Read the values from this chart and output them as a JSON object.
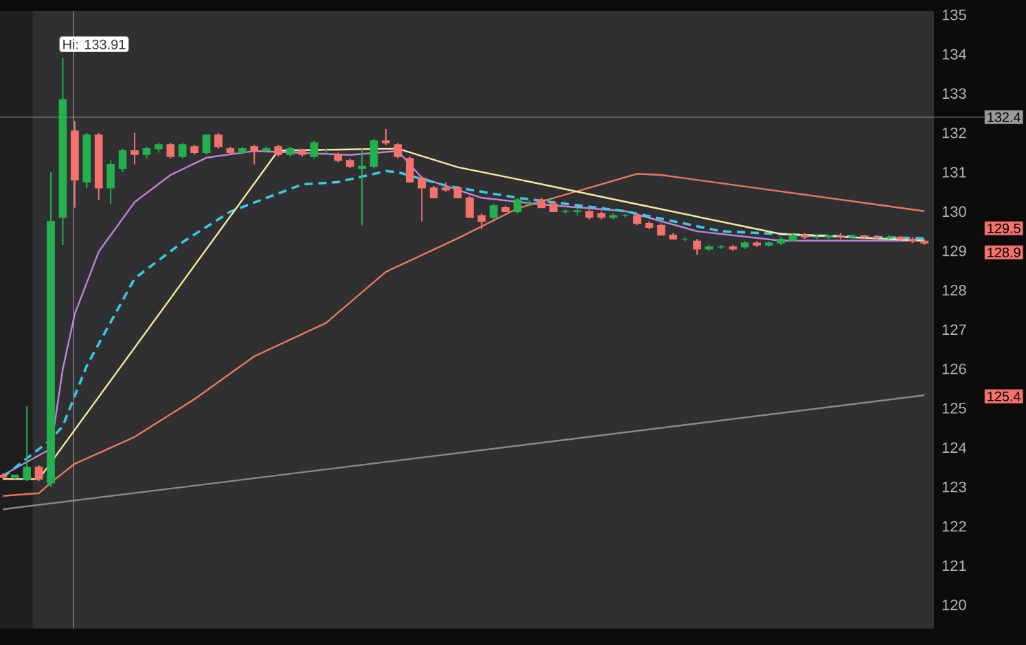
{
  "chart_data": {
    "type": "candlestick",
    "categories": [
      null,
      null,
      null,
      null,
      null,
      null,
      null,
      null,
      null,
      null,
      null,
      null,
      null,
      null,
      null,
      null,
      null,
      null,
      null,
      null,
      null,
      null,
      null,
      null,
      null,
      null,
      null,
      null,
      null,
      null,
      null,
      null,
      null,
      null,
      null,
      null,
      null,
      null,
      null,
      null,
      null,
      null,
      null,
      null,
      null,
      null,
      null,
      null,
      null,
      null,
      null,
      null,
      null,
      null,
      null,
      null,
      null,
      null,
      null,
      null,
      null,
      null,
      null,
      null,
      null,
      null,
      null,
      null,
      null,
      null,
      null,
      null,
      null,
      null,
      null,
      null,
      null,
      null
    ],
    "ohlc": [
      [
        123.3,
        123.35,
        123.2,
        123.25
      ],
      [
        123.25,
        123.3,
        123.2,
        123.3
      ],
      [
        123.2,
        125.05,
        123.15,
        123.5
      ],
      [
        123.5,
        123.55,
        123.15,
        123.2
      ],
      [
        123.1,
        131.0,
        123.0,
        129.75
      ],
      [
        129.85,
        133.91,
        129.15,
        132.85
      ],
      [
        132.05,
        132.3,
        130.1,
        130.8
      ],
      [
        130.75,
        132.0,
        130.6,
        131.95
      ],
      [
        131.95,
        132.0,
        130.3,
        130.6
      ],
      [
        130.6,
        131.3,
        130.2,
        131.2
      ],
      [
        131.1,
        131.6,
        131.0,
        131.55
      ],
      [
        131.55,
        132.0,
        131.2,
        131.45
      ],
      [
        131.45,
        131.65,
        131.35,
        131.6
      ],
      [
        131.6,
        131.75,
        131.5,
        131.7
      ],
      [
        131.7,
        131.75,
        131.35,
        131.4
      ],
      [
        131.4,
        131.75,
        131.35,
        131.7
      ],
      [
        131.65,
        131.7,
        131.45,
        131.5
      ],
      [
        131.5,
        131.95,
        131.45,
        131.95
      ],
      [
        131.95,
        132.0,
        131.6,
        131.65
      ],
      [
        131.6,
        131.65,
        131.45,
        131.5
      ],
      [
        131.5,
        131.65,
        131.45,
        131.6
      ],
      [
        131.65,
        131.7,
        131.2,
        131.55
      ],
      [
        131.55,
        131.65,
        131.5,
        131.6
      ],
      [
        131.65,
        131.7,
        131.4,
        131.45
      ],
      [
        131.45,
        131.65,
        131.4,
        131.6
      ],
      [
        131.55,
        131.6,
        131.4,
        131.45
      ],
      [
        131.4,
        131.8,
        131.35,
        131.75
      ],
      [
        131.55,
        131.6,
        131.45,
        131.55
      ],
      [
        131.45,
        131.5,
        131.25,
        131.3
      ],
      [
        131.3,
        131.35,
        131.1,
        131.15
      ],
      [
        131.1,
        131.6,
        129.65,
        131.15
      ],
      [
        131.15,
        131.85,
        131.1,
        131.8
      ],
      [
        131.8,
        132.1,
        131.7,
        131.75
      ],
      [
        131.7,
        131.75,
        131.35,
        131.4
      ],
      [
        131.35,
        131.4,
        130.75,
        130.75
      ],
      [
        130.85,
        130.9,
        129.75,
        130.6
      ],
      [
        130.6,
        130.65,
        130.35,
        130.35
      ],
      [
        130.6,
        130.75,
        130.5,
        130.55
      ],
      [
        130.6,
        130.65,
        130.35,
        130.35
      ],
      [
        130.35,
        130.4,
        129.85,
        129.85
      ],
      [
        129.9,
        129.95,
        129.55,
        129.75
      ],
      [
        129.85,
        130.2,
        129.8,
        130.15
      ],
      [
        130.1,
        130.15,
        130.0,
        130.0
      ],
      [
        130.0,
        130.35,
        129.95,
        130.3
      ],
      [
        130.2,
        130.3,
        130.15,
        130.2
      ],
      [
        130.3,
        130.35,
        130.1,
        130.1
      ],
      [
        130.2,
        130.25,
        130.0,
        130.0
      ],
      [
        130.0,
        130.05,
        129.95,
        130.0
      ],
      [
        130.0,
        130.1,
        129.9,
        130.02
      ],
      [
        130.0,
        130.05,
        129.8,
        129.85
      ],
      [
        129.95,
        130.0,
        129.8,
        129.85
      ],
      [
        129.85,
        129.95,
        129.8,
        129.9
      ],
      [
        129.9,
        129.95,
        129.85,
        129.9
      ],
      [
        129.9,
        129.95,
        129.65,
        129.7
      ],
      [
        129.7,
        129.75,
        129.55,
        129.6
      ],
      [
        129.65,
        129.7,
        129.4,
        129.4
      ],
      [
        129.4,
        129.45,
        129.3,
        129.3
      ],
      [
        129.3,
        129.35,
        129.25,
        129.3
      ],
      [
        129.25,
        129.3,
        128.9,
        129.05
      ],
      [
        129.05,
        129.15,
        129.0,
        129.1
      ],
      [
        129.1,
        129.15,
        129.05,
        129.1
      ],
      [
        129.1,
        129.15,
        129.0,
        129.05
      ],
      [
        129.1,
        129.25,
        129.05,
        129.2
      ],
      [
        129.2,
        129.25,
        129.1,
        129.15
      ],
      [
        129.15,
        129.25,
        129.1,
        129.2
      ],
      [
        129.2,
        129.35,
        129.15,
        129.3
      ],
      [
        129.27,
        129.45,
        129.25,
        129.4
      ],
      [
        129.4,
        129.45,
        129.3,
        129.35
      ],
      [
        129.35,
        129.4,
        129.3,
        129.35
      ],
      [
        129.35,
        129.4,
        129.3,
        129.38
      ],
      [
        129.38,
        129.45,
        129.3,
        129.35
      ],
      [
        129.35,
        129.4,
        129.3,
        129.37
      ],
      [
        129.37,
        129.4,
        129.3,
        129.35
      ],
      [
        129.35,
        129.4,
        129.3,
        129.33
      ],
      [
        129.33,
        129.4,
        129.3,
        129.35
      ],
      [
        129.35,
        129.38,
        129.25,
        129.3
      ],
      [
        129.3,
        129.35,
        129.2,
        129.25
      ],
      [
        129.25,
        129.3,
        129.15,
        129.2
      ]
    ],
    "colors": [
      "#f4726b",
      "#22b14c",
      "#22b14c",
      "#f4726b",
      "#22b14c",
      "#22b14c",
      "#f4726b",
      "#22b14c",
      "#f4726b",
      "#22b14c",
      "#22b14c",
      "#f4726b",
      "#22b14c",
      "#22b14c",
      "#f4726b",
      "#22b14c",
      "#f4726b",
      "#22b14c",
      "#f4726b",
      "#f4726b",
      "#22b14c",
      "#f4726b",
      "#22b14c",
      "#f4726b",
      "#22b14c",
      "#f4726b",
      "#22b14c",
      "#22b14c",
      "#f4726b",
      "#f4726b",
      "#22b14c",
      "#22b14c",
      "#f4726b",
      "#f4726b",
      "#f4726b",
      "#f4726b",
      "#f4726b",
      "#f4726b",
      "#f4726b",
      "#f4726b",
      "#f4726b",
      "#22b14c",
      "#f4726b",
      "#22b14c",
      "#22b14c",
      "#f4726b",
      "#f4726b",
      "#22b14c",
      "#22b14c",
      "#f4726b",
      "#f4726b",
      "#22b14c",
      "#22b14c",
      "#f4726b",
      "#f4726b",
      "#f4726b",
      "#f4726b",
      "#22b14c",
      "#f4726b",
      "#22b14c",
      "#22b14c",
      "#f4726b",
      "#22b14c",
      "#f4726b",
      "#22b14c",
      "#22b14c",
      "#22b14c",
      "#f4726b",
      "#22b14c",
      "#22b14c",
      "#f4726b",
      "#22b14c",
      "#f4726b",
      "#f4726b",
      "#22b14c",
      "#f4726b",
      "#f4726b",
      "#f4726b"
    ],
    "series": [
      {
        "type": "line",
        "color": "#8a8a8a",
        "line_style": "solid",
        "values": [
          122.43,
          null,
          null,
          null,
          null,
          null,
          null,
          null,
          null,
          null,
          null,
          null,
          null,
          null,
          null,
          null,
          null,
          null,
          null,
          null,
          null,
          null,
          null,
          null,
          null,
          null,
          null,
          null,
          null,
          null,
          null,
          null,
          null,
          null,
          null,
          null,
          null,
          null,
          null,
          null,
          null,
          null,
          null,
          null,
          null,
          null,
          null,
          null,
          null,
          null,
          null,
          null,
          null,
          null,
          null,
          null,
          null,
          null,
          null,
          null,
          null,
          null,
          null,
          null,
          null,
          null,
          null,
          null,
          null,
          null,
          null,
          null,
          null,
          null,
          null,
          null,
          null,
          125.33
        ]
      },
      {
        "type": "line",
        "color": "#e57a5e",
        "line_style": "solid",
        "values": [
          122.77,
          null,
          null,
          122.84,
          123.11,
          null,
          123.59,
          null,
          null,
          null,
          null,
          124.27,
          null,
          null,
          null,
          null,
          125.23,
          null,
          null,
          null,
          null,
          126.32,
          null,
          null,
          null,
          null,
          null,
          127.17,
          null,
          null,
          null,
          null,
          128.47,
          null,
          null,
          null,
          null,
          null,
          129.32,
          null,
          null,
          null,
          null,
          130.08,
          null,
          null,
          null,
          null,
          130.52,
          null,
          null,
          null,
          null,
          130.96,
          null,
          130.93,
          null,
          null,
          null,
          null,
          null,
          null,
          null,
          null,
          null,
          null,
          null,
          null,
          null,
          null,
          null,
          null,
          null,
          null,
          null,
          null,
          null,
          130.01
        ]
      },
      {
        "type": "line",
        "color": "#c383d6",
        "line_style": "solid",
        "values": [
          123.3,
          null,
          null,
          null,
          123.97,
          126.0,
          127.4,
          null,
          128.98,
          null,
          null,
          130.24,
          null,
          null,
          130.93,
          null,
          null,
          131.37,
          null,
          null,
          null,
          131.54,
          null,
          null,
          null,
          null,
          null,
          null,
          null,
          131.44,
          null,
          null,
          null,
          131.54,
          null,
          130.86,
          null,
          null,
          null,
          null,
          130.35,
          null,
          null,
          null,
          null,
          130.18,
          null,
          null,
          null,
          null,
          null,
          null,
          130.01,
          null,
          null,
          null,
          null,
          null,
          129.5,
          null,
          null,
          null,
          null,
          null,
          null,
          129.26,
          null,
          null,
          null,
          null,
          null,
          null,
          null,
          null,
          null,
          null,
          null,
          129.26
        ]
      },
      {
        "type": "line",
        "color": "#3cc8e0",
        "line_style": "dashed",
        "values": [
          123.25,
          null,
          null,
          null,
          124.2,
          124.55,
          null,
          126.08,
          null,
          null,
          null,
          128.3,
          null,
          null,
          null,
          129.22,
          null,
          null,
          null,
          130.0,
          null,
          null,
          null,
          null,
          null,
          130.69,
          null,
          null,
          130.75,
          null,
          null,
          null,
          131.03,
          131.0,
          null,
          null,
          null,
          130.66,
          null,
          null,
          null,
          null,
          null,
          130.35,
          null,
          null,
          null,
          null,
          null,
          null,
          null,
          null,
          130.01,
          null,
          null,
          null,
          null,
          null,
          null,
          null,
          129.5,
          null,
          null,
          null,
          null,
          null,
          null,
          129.4,
          null,
          null,
          null,
          null,
          null,
          null,
          null,
          null,
          null,
          129.32
        ]
      },
      {
        "type": "line",
        "color": "#f3eba0",
        "line_style": "solid",
        "values": [
          123.2,
          null,
          null,
          123.2,
          null,
          null,
          null,
          null,
          null,
          null,
          null,
          null,
          null,
          null,
          null,
          null,
          null,
          null,
          null,
          null,
          null,
          null,
          null,
          131.55,
          null,
          null,
          null,
          null,
          null,
          null,
          null,
          null,
          null,
          131.6,
          null,
          null,
          null,
          null,
          131.13,
          null,
          null,
          null,
          null,
          null,
          130.76,
          null,
          null,
          null,
          null,
          null,
          null,
          null,
          130.25,
          null,
          null,
          null,
          null,
          null,
          null,
          null,
          null,
          null,
          null,
          null,
          null,
          129.43,
          null,
          null,
          null,
          null,
          null,
          null,
          null,
          null,
          null,
          null,
          null,
          129.26
        ]
      }
    ],
    "ylim": [
      119.4,
      135.1
    ],
    "yticks": [
      120,
      121,
      122,
      123,
      124,
      125,
      126,
      127,
      128,
      129,
      130,
      131,
      132,
      133,
      134,
      135
    ],
    "ref_lines": [
      {
        "axis": "y",
        "value": 132.4,
        "label": "132.4",
        "color": "#9a9a9a"
      }
    ],
    "annotations": [
      "Hi: 133.91",
      "129.5",
      "128.9",
      "125.4"
    ]
  }
}
